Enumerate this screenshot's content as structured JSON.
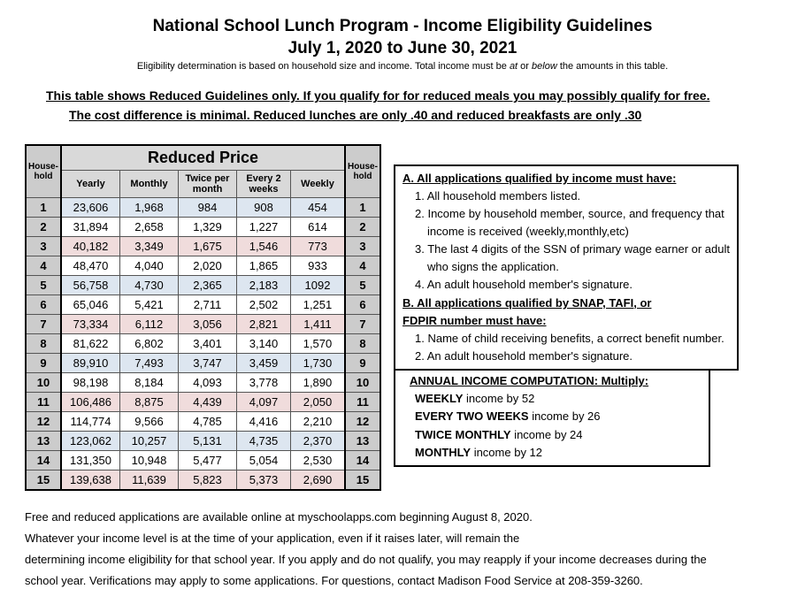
{
  "header": {
    "title_line1": "National School Lunch Program - Income Eligibility Guidelines",
    "title_line2": "July 1, 2020 to June 30, 2021",
    "sub_pre": "Eligibility determination is based on household size and income.  Total income must be ",
    "sub_at": "at",
    "sub_mid": " or ",
    "sub_below": "below",
    "sub_post": "  the amounts in this table."
  },
  "notice": {
    "line1": "This table shows Reduced Guidelines only. If you qualify for for reduced meals you may possibly qualify for free.",
    "line2": "The cost difference is minimal.  Reduced lunches are only .40 and reduced breakfasts are only .30"
  },
  "table": {
    "title": "Reduced Price",
    "hh_label": "House-\nhold",
    "cols": {
      "yearly": "Yearly",
      "monthly": "Monthly",
      "twice": "Twice per\nmonth",
      "every2": "Every 2\nweeks",
      "weekly": "Weekly"
    },
    "rows": [
      {
        "hh": "1",
        "y": "23,606",
        "m": "1,968",
        "t": "984",
        "e": "908",
        "w": "454",
        "cls": "row-blue"
      },
      {
        "hh": "2",
        "y": "31,894",
        "m": "2,658",
        "t": "1,329",
        "e": "1,227",
        "w": "614",
        "cls": ""
      },
      {
        "hh": "3",
        "y": "40,182",
        "m": "3,349",
        "t": "1,675",
        "e": "1,546",
        "w": "773",
        "cls": "row-pink"
      },
      {
        "hh": "4",
        "y": "48,470",
        "m": "4,040",
        "t": "2,020",
        "e": "1,865",
        "w": "933",
        "cls": ""
      },
      {
        "hh": "5",
        "y": "56,758",
        "m": "4,730",
        "t": "2,365",
        "e": "2,183",
        "w": "1092",
        "cls": "row-blue"
      },
      {
        "hh": "6",
        "y": "65,046",
        "m": "5,421",
        "t": "2,711",
        "e": "2,502",
        "w": "1,251",
        "cls": ""
      },
      {
        "hh": "7",
        "y": "73,334",
        "m": "6,112",
        "t": "3,056",
        "e": "2,821",
        "w": "1,411",
        "cls": "row-pink"
      },
      {
        "hh": "8",
        "y": "81,622",
        "m": "6,802",
        "t": "3,401",
        "e": "3,140",
        "w": "1,570",
        "cls": ""
      },
      {
        "hh": "9",
        "y": "89,910",
        "m": "7,493",
        "t": "3,747",
        "e": "3,459",
        "w": "1,730",
        "cls": "row-blue"
      },
      {
        "hh": "10",
        "y": "98,198",
        "m": "8,184",
        "t": "4,093",
        "e": "3,778",
        "w": "1,890",
        "cls": ""
      },
      {
        "hh": "11",
        "y": "106,486",
        "m": "8,875",
        "t": "4,439",
        "e": "4,097",
        "w": "2,050",
        "cls": "row-pink"
      },
      {
        "hh": "12",
        "y": "114,774",
        "m": "9,566",
        "t": "4,785",
        "e": "4,416",
        "w": "2,210",
        "cls": ""
      },
      {
        "hh": "13",
        "y": "123,062",
        "m": "10,257",
        "t": "5,131",
        "e": "4,735",
        "w": "2,370",
        "cls": "row-blue"
      },
      {
        "hh": "14",
        "y": "131,350",
        "m": "10,948",
        "t": "5,477",
        "e": "5,054",
        "w": "2,530",
        "cls": ""
      },
      {
        "hh": "15",
        "y": "139,638",
        "m": "11,639",
        "t": "5,823",
        "e": "5,373",
        "w": "2,690",
        "cls": "row-pink"
      }
    ]
  },
  "boxA": {
    "hdA": "A.  All applications qualified by income must have:",
    "a1": "1. All household members listed.",
    "a2": "2. Income by household member, source, and  frequency that",
    "a2b": "income is received (weekly,monthly,etc)",
    "a3": "3. The last 4 digits of the SSN of primary wage earner or adult",
    "a3b": "who signs the application.",
    "a4": "4. An adult household member's signature.",
    "hdB": "B. All applications qualified by SNAP, TAFI, or",
    "hdB2": "FDPIR number must have:",
    "b1": "1. Name of child receiving benefits, a correct benefit number.",
    "b2": "2.  An adult household member's signature."
  },
  "boxC": {
    "hd": "ANNUAL INCOME COMPUTATION:  Multiply:",
    "c1a": "WEEKLY",
    "c1b": " income by 52",
    "c2a": "EVERY TWO WEEKS",
    "c2b": " income by 26",
    "c3a": "TWICE MONTHLY",
    "c3b": " income by 24",
    "c4a": "MONTHLY",
    "c4b": " income by 12"
  },
  "footer": {
    "l1": "Free and reduced applications are available online at myschoolapps.com beginning August 8, 2020.",
    "l2": "Whatever your income level is at the time of your application, even if it raises later, will remain the",
    "l3": "determining income eligibility for that school year.  If you apply and do not qualify, you may reapply if your income decreases during the",
    "l4": "school year.  Verifications may apply to some applications.  For questions, contact Madison Food Service at 208-359-3260."
  }
}
